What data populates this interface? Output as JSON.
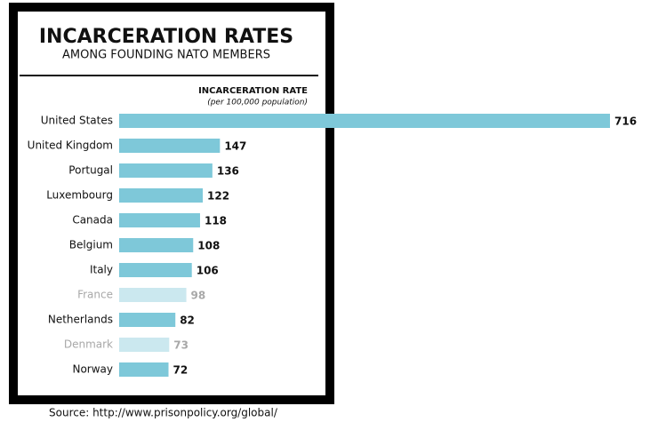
{
  "chart_data": {
    "type": "bar",
    "orientation": "horizontal",
    "title": "INCARCERATION RATES",
    "subtitle": "AMONG FOUNDING NATO MEMBERS",
    "axis_title": "INCARCERATION RATE",
    "axis_subtitle": "(per 100,000 population)",
    "categories": [
      "United States",
      "United Kingdom",
      "Portugal",
      "Luxembourg",
      "Canada",
      "Belgium",
      "Italy",
      "France",
      "Netherlands",
      "Denmark",
      "Norway"
    ],
    "values": [
      716,
      147,
      136,
      122,
      118,
      108,
      106,
      98,
      82,
      73,
      72
    ],
    "colors": [
      "#7ec8d9",
      "#7ec8d9",
      "#7ec8d9",
      "#7ec8d9",
      "#7ec8d9",
      "#7ec8d9",
      "#7ec8d9",
      "#cbe8ef",
      "#7ec8d9",
      "#cbe8ef",
      "#7ec8d9"
    ],
    "label_colors": [
      "#111111",
      "#111111",
      "#111111",
      "#111111",
      "#111111",
      "#111111",
      "#111111",
      "#a8a8a8",
      "#111111",
      "#a8a8a8",
      "#111111"
    ],
    "source": "Source: http://www.prisonpolicy.org/global/"
  }
}
